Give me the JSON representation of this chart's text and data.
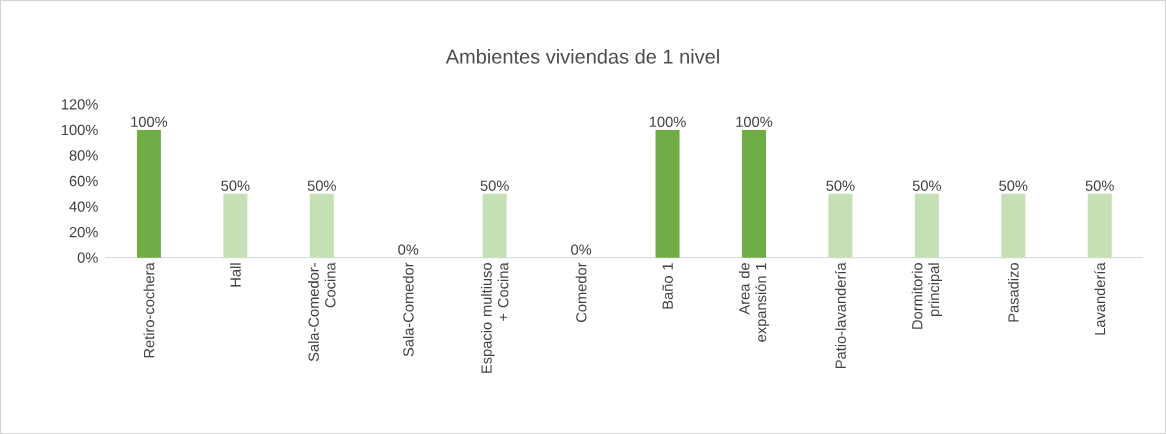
{
  "chart_data": {
    "type": "bar",
    "title": "Ambientes viviendas de 1 nivel",
    "categories": [
      "Retiro-cochera",
      "Hall",
      "Sala-Comedor-Cocina",
      "Sala-Comedor",
      "Espacio multiuso + Cocina",
      "Comedor",
      "Baño 1",
      "Area de expansión 1",
      "Patio-lavandería",
      "Dormitorio principal",
      "Pasadizo",
      "Lavandería"
    ],
    "values": [
      100,
      50,
      50,
      0,
      50,
      0,
      100,
      100,
      50,
      50,
      50,
      50
    ],
    "value_labels": [
      "100%",
      "50%",
      "50%",
      "0%",
      "50%",
      "0%",
      "100%",
      "100%",
      "50%",
      "50%",
      "50%",
      "50%"
    ],
    "colors": [
      "#70ad47",
      "#c5e0b4",
      "#c5e0b4",
      "#c5e0b4",
      "#c5e0b4",
      "#c5e0b4",
      "#70ad47",
      "#70ad47",
      "#c5e0b4",
      "#c5e0b4",
      "#c5e0b4",
      "#c5e0b4"
    ],
    "ylim": [
      0,
      120
    ],
    "yticks": [
      {
        "value": 0,
        "label": "0%"
      },
      {
        "value": 20,
        "label": "20%"
      },
      {
        "value": 40,
        "label": "40%"
      },
      {
        "value": 60,
        "label": "60%"
      },
      {
        "value": 80,
        "label": "80%"
      },
      {
        "value": 100,
        "label": "100%"
      },
      {
        "value": 120,
        "label": "120%"
      }
    ]
  }
}
